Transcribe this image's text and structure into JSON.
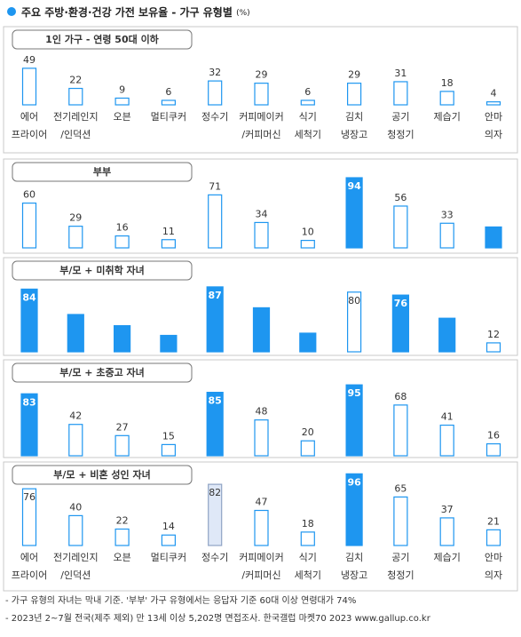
{
  "title": "주요 주방·환경·건강 가전 보유율 - 가구 유형별",
  "unit": "(%)",
  "notes": [
    "- 가구 유형의 자녀는 막내 기준. '부부' 가구 유형에서는 응답자 기준 60대 이상 연령대가 74%",
    "- 2023년 2~7월 전국(제주 제외) 만 13세 이상 5,202명 면접조사. 한국갤럽 마켓70 2023 www.gallup.co.kr"
  ],
  "chart_data": [
    {
      "type": "bar",
      "title": "1인 가구 - 연령 50대 이하",
      "ylim": [
        0,
        100
      ],
      "categories": [
        [
          "에어",
          "프라이어"
        ],
        [
          "전기레인지",
          "/인덕션"
        ],
        [
          "오븐"
        ],
        [
          "멀티쿠커"
        ],
        [
          "정수기"
        ],
        [
          "커피메이커",
          "/커피머신"
        ],
        [
          "식기",
          "세척기"
        ],
        [
          "김치",
          "냉장고"
        ],
        [
          "공기",
          "청정기"
        ],
        [
          "제습기"
        ],
        [
          "안마",
          "의자"
        ]
      ],
      "values": [
        49,
        22,
        9,
        6,
        32,
        29,
        6,
        29,
        31,
        18,
        4
      ],
      "colors": [
        "#ffffff",
        "#ffffff",
        "#ffffff",
        "#ffffff",
        "#ffffff",
        "#ffffff",
        "#ffffff",
        "#ffffff",
        "#ffffff",
        "#ffffff",
        "#ffffff"
      ]
    },
    {
      "type": "bar",
      "title": "부부",
      "ylim": [
        0,
        100
      ],
      "values": [
        60,
        29,
        16,
        11,
        71,
        34,
        10,
        94,
        56,
        33,
        28
      ],
      "colors": [
        "#ffffff",
        "#ffffff",
        "#ffffff",
        "#ffffff",
        "#ffffff",
        "#ffffff",
        "#ffffff",
        "#1e96f0",
        "#ffffff",
        "#ffffff",
        "#1e96f0"
      ]
    },
    {
      "type": "bar",
      "title": "부/모 + 미취학 자녀",
      "ylim": [
        0,
        100
      ],
      "values": [
        84,
        50,
        35,
        22,
        87,
        59,
        25,
        80,
        76,
        45,
        12
      ],
      "colors": [
        "#1e96f0",
        "#1e96f0",
        "#1e96f0",
        "#1e96f0",
        "#1e96f0",
        "#1e96f0",
        "#1e96f0",
        "#ffffff",
        "#1e96f0",
        "#1e96f0",
        "#ffffff"
      ]
    },
    {
      "type": "bar",
      "title": "부/모 + 초중고 자녀",
      "ylim": [
        0,
        100
      ],
      "values": [
        83,
        42,
        27,
        15,
        85,
        48,
        20,
        95,
        68,
        41,
        16
      ],
      "colors": [
        "#1e96f0",
        "#ffffff",
        "#ffffff",
        "#ffffff",
        "#1e96f0",
        "#ffffff",
        "#ffffff",
        "#1e96f0",
        "#ffffff",
        "#ffffff",
        "#ffffff"
      ]
    },
    {
      "type": "bar",
      "title": "부/모 + 비혼 성인 자녀",
      "ylim": [
        0,
        100
      ],
      "categories": [
        [
          "에어",
          "프라이어"
        ],
        [
          "전기레인지",
          "/인덕션"
        ],
        [
          "오븐"
        ],
        [
          "멀티쿠커"
        ],
        [
          "정수기"
        ],
        [
          "커피메이커",
          "/커피머신"
        ],
        [
          "식기",
          "세척기"
        ],
        [
          "김치",
          "냉장고"
        ],
        [
          "공기",
          "청정기"
        ],
        [
          "제습기"
        ],
        [
          "안마",
          "의자"
        ]
      ],
      "values": [
        76,
        40,
        22,
        14,
        82,
        47,
        18,
        96,
        65,
        37,
        21
      ],
      "colors": [
        "#ffffff",
        "#ffffff",
        "#ffffff",
        "#ffffff",
        "#dfe8f7",
        "#ffffff",
        "#ffffff",
        "#1e96f0",
        "#ffffff",
        "#ffffff",
        "#ffffff"
      ]
    }
  ]
}
